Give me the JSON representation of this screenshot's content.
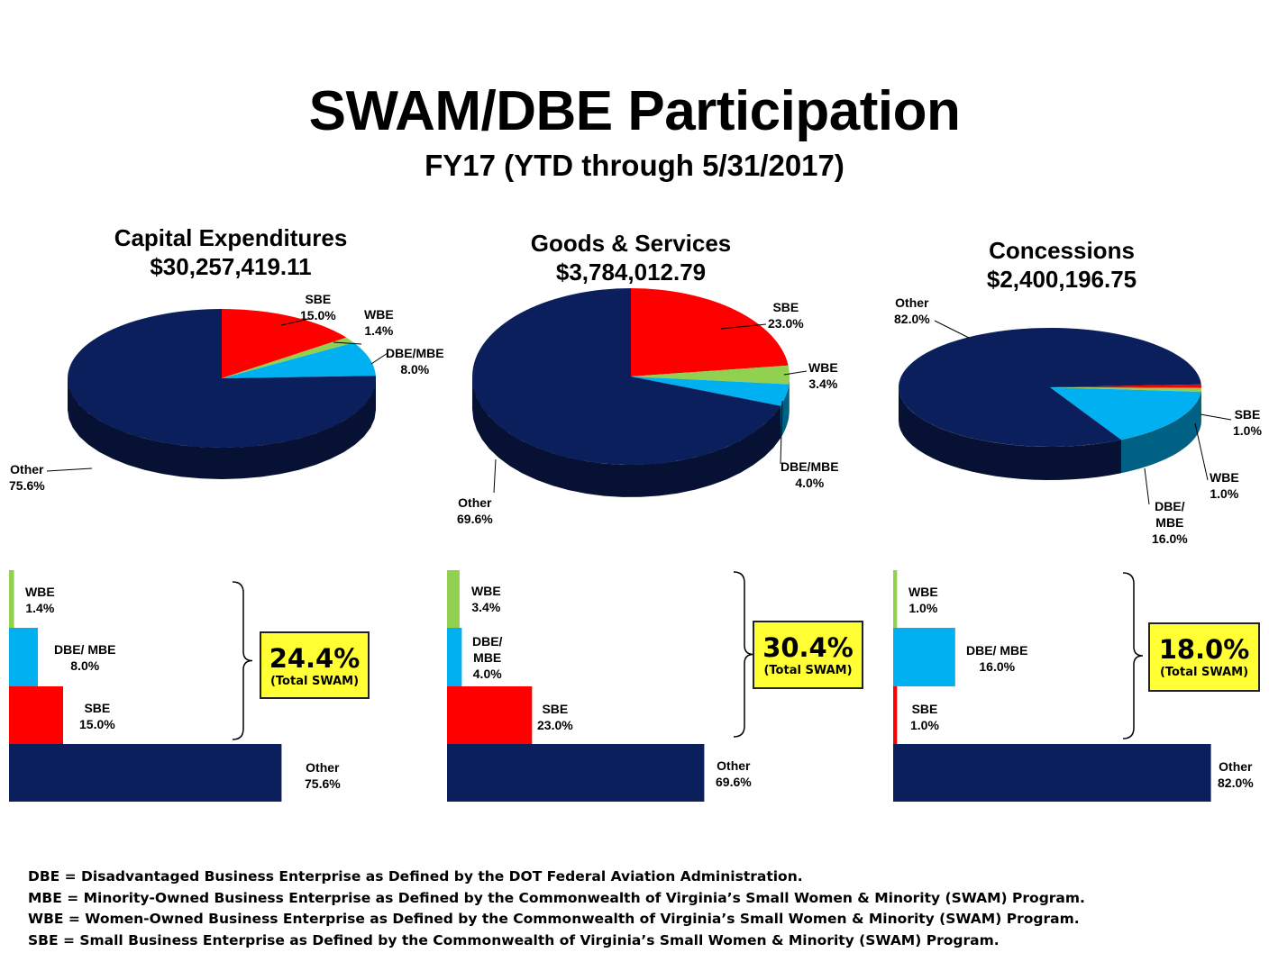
{
  "title": "SWAM/DBE Participation",
  "subtitle": "FY17 (YTD through 5/31/2017)",
  "colors": {
    "Other": "#0b1f5c",
    "SBE": "#ff0000",
    "WBE": "#92d050",
    "DBE/MBE": "#00b0f0",
    "highlight": "#ffff33"
  },
  "chart_data": [
    {
      "type": "pie",
      "title": "Capital Expenditures",
      "subtitle": "$30,257,419.11",
      "categories": [
        "SBE",
        "WBE",
        "DBE/MBE",
        "Other"
      ],
      "values": [
        15.0,
        1.4,
        8.0,
        75.6
      ],
      "labels": [
        "SBE|15.0%",
        "WBE|1.4%",
        "DBE/MBE|8.0%",
        "Other|75.6%"
      ]
    },
    {
      "type": "pie",
      "title": "Goods & Services",
      "subtitle": "$3,784,012.79",
      "categories": [
        "SBE",
        "WBE",
        "DBE/MBE",
        "Other"
      ],
      "values": [
        23.0,
        3.4,
        4.0,
        69.6
      ],
      "labels": [
        "SBE|23.0%",
        "WBE|3.4%",
        "DBE/MBE|4.0%",
        "Other|69.6%"
      ]
    },
    {
      "type": "pie",
      "title": "Concessions",
      "subtitle": "$2,400,196.75",
      "categories": [
        "SBE",
        "WBE",
        "DBE/MBE",
        "Other"
      ],
      "values": [
        1.0,
        1.0,
        16.0,
        82.0
      ],
      "labels": [
        "SBE|1.0%",
        "WBE|1.0%",
        "DBE/|MBE|16.0%",
        "Other|82.0%"
      ]
    },
    {
      "type": "bar",
      "orientation": "horizontal",
      "categories": [
        "WBE",
        "DBE/ MBE",
        "SBE",
        "Other"
      ],
      "values": [
        1.4,
        8.0,
        15.0,
        75.6
      ],
      "labels": [
        "WBE|1.4%",
        "DBE/ MBE|8.0%",
        "SBE|15.0%",
        "Other|75.6%"
      ],
      "total_swam": "24.4%",
      "total_label": "(Total SWAM)"
    },
    {
      "type": "bar",
      "orientation": "horizontal",
      "categories": [
        "WBE",
        "DBE/ MBE",
        "SBE",
        "Other"
      ],
      "values": [
        3.4,
        4.0,
        23.0,
        69.6
      ],
      "labels": [
        "WBE|3.4%",
        "DBE/|MBE|4.0%",
        "SBE|23.0%",
        "Other|69.6%"
      ],
      "total_swam": "30.4%",
      "total_label": "(Total SWAM)"
    },
    {
      "type": "bar",
      "orientation": "horizontal",
      "categories": [
        "WBE",
        "DBE/ MBE",
        "SBE",
        "Other"
      ],
      "values": [
        1.0,
        16.0,
        1.0,
        82.0
      ],
      "labels": [
        "WBE|1.0%",
        "DBE/ MBE|16.0%",
        "SBE|1.0%",
        "Other|82.0%"
      ],
      "total_swam": "18.0%",
      "total_label": "(Total SWAM)"
    }
  ],
  "footnotes": [
    "DBE = Disadvantaged Business Enterprise as Defined by the DOT Federal Aviation Administration.",
    "MBE = Minority-Owned Business Enterprise as Defined by the Commonwealth of Virginia’s Small Women & Minority (SWAM) Program.",
    "WBE = Women-Owned Business Enterprise as Defined by the Commonwealth of Virginia’s Small Women & Minority (SWAM) Program.",
    "SBE = Small Business Enterprise as Defined by the Commonwealth of Virginia’s Small Women & Minority (SWAM) Program."
  ]
}
